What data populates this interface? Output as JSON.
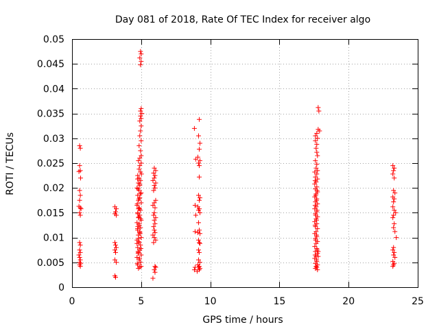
{
  "chart_data": {
    "type": "scatter",
    "title": "Day 081 of 2018, Rate Of TEC Index for receiver algo",
    "xlabel": "GPS time / hours",
    "ylabel": "ROTI / TECUs",
    "xlim": [
      0,
      25
    ],
    "ylim": [
      0,
      0.05
    ],
    "xticks": [
      0,
      5,
      10,
      15,
      20,
      25
    ],
    "xtick_labels": [
      "0",
      "5",
      "10",
      "15",
      "20",
      "25"
    ],
    "yticks": [
      0,
      0.005,
      0.01,
      0.015,
      0.02,
      0.025,
      0.03,
      0.035,
      0.04,
      0.045,
      0.05
    ],
    "ytick_labels": [
      "0",
      "0.005",
      "0.01",
      "0.015",
      "0.02",
      "0.025",
      "0.03",
      "0.035",
      "0.04",
      "0.045",
      "0.05"
    ],
    "grid": true,
    "marker": "+",
    "color": "#ff0000",
    "series": [
      {
        "name": "ROTI",
        "points": [
          [
            0.55,
            0.0285
          ],
          [
            0.6,
            0.028
          ],
          [
            0.55,
            0.0245
          ],
          [
            0.6,
            0.0235
          ],
          [
            0.5,
            0.0233
          ],
          [
            0.62,
            0.022
          ],
          [
            0.55,
            0.0195
          ],
          [
            0.6,
            0.0185
          ],
          [
            0.55,
            0.0175
          ],
          [
            0.5,
            0.0163
          ],
          [
            0.6,
            0.016
          ],
          [
            0.65,
            0.0158
          ],
          [
            0.55,
            0.015
          ],
          [
            0.6,
            0.0145
          ],
          [
            0.55,
            0.009
          ],
          [
            0.6,
            0.0085
          ],
          [
            0.55,
            0.0075
          ],
          [
            0.6,
            0.007
          ],
          [
            0.5,
            0.0065
          ],
          [
            0.55,
            0.006
          ],
          [
            0.6,
            0.0055
          ],
          [
            0.55,
            0.005
          ],
          [
            0.62,
            0.0048
          ],
          [
            0.55,
            0.0045
          ],
          [
            0.6,
            0.0042
          ],
          [
            3.1,
            0.0162
          ],
          [
            3.2,
            0.0158
          ],
          [
            3.15,
            0.0152
          ],
          [
            3.1,
            0.0148
          ],
          [
            3.2,
            0.0145
          ],
          [
            3.1,
            0.009
          ],
          [
            3.15,
            0.0085
          ],
          [
            3.2,
            0.008
          ],
          [
            3.1,
            0.0075
          ],
          [
            3.15,
            0.007
          ],
          [
            3.1,
            0.0055
          ],
          [
            3.2,
            0.005
          ],
          [
            3.1,
            0.0023
          ],
          [
            3.15,
            0.002
          ],
          [
            4.95,
            0.0475
          ],
          [
            5.0,
            0.047
          ],
          [
            4.9,
            0.0462
          ],
          [
            5.0,
            0.0455
          ],
          [
            4.95,
            0.0448
          ],
          [
            5.0,
            0.036
          ],
          [
            4.95,
            0.0355
          ],
          [
            5.05,
            0.035
          ],
          [
            4.95,
            0.0345
          ],
          [
            5.0,
            0.034
          ],
          [
            4.9,
            0.0335
          ],
          [
            5.0,
            0.0325
          ],
          [
            4.95,
            0.0315
          ],
          [
            4.9,
            0.0305
          ],
          [
            5.0,
            0.0295
          ],
          [
            4.85,
            0.0285
          ],
          [
            4.95,
            0.0275
          ],
          [
            5.0,
            0.0265
          ],
          [
            4.9,
            0.026
          ],
          [
            4.8,
            0.0255
          ],
          [
            5.0,
            0.025
          ],
          [
            4.9,
            0.0245
          ],
          [
            4.85,
            0.0238
          ],
          [
            4.95,
            0.0232
          ],
          [
            4.75,
            0.0225
          ],
          [
            4.85,
            0.022
          ],
          [
            4.95,
            0.0215
          ],
          [
            4.8,
            0.021
          ],
          [
            4.9,
            0.0205
          ],
          [
            4.7,
            0.02
          ],
          [
            4.85,
            0.0195
          ],
          [
            5.0,
            0.019
          ],
          [
            4.75,
            0.0185
          ],
          [
            4.9,
            0.018
          ],
          [
            4.8,
            0.0175
          ],
          [
            5.0,
            0.017
          ],
          [
            4.7,
            0.0165
          ],
          [
            4.85,
            0.016
          ],
          [
            4.95,
            0.0155
          ],
          [
            4.75,
            0.015
          ],
          [
            4.9,
            0.0145
          ],
          [
            4.8,
            0.014
          ],
          [
            5.0,
            0.0135
          ],
          [
            4.7,
            0.013
          ],
          [
            4.85,
            0.0125
          ],
          [
            4.95,
            0.012
          ],
          [
            4.75,
            0.0115
          ],
          [
            4.9,
            0.011
          ],
          [
            4.8,
            0.0105
          ],
          [
            5.0,
            0.01
          ],
          [
            4.7,
            0.0095
          ],
          [
            4.85,
            0.009
          ],
          [
            4.95,
            0.0085
          ],
          [
            4.75,
            0.008
          ],
          [
            4.9,
            0.0075
          ],
          [
            4.8,
            0.007
          ],
          [
            5.0,
            0.0065
          ],
          [
            4.7,
            0.006
          ],
          [
            4.85,
            0.0055
          ],
          [
            4.95,
            0.005
          ],
          [
            4.75,
            0.0045
          ],
          [
            4.9,
            0.004
          ],
          [
            4.8,
            0.0038
          ],
          [
            5.0,
            0.0042
          ],
          [
            4.72,
            0.0048
          ],
          [
            4.88,
            0.0058
          ],
          [
            4.78,
            0.0068
          ],
          [
            4.98,
            0.0078
          ],
          [
            4.7,
            0.0088
          ],
          [
            4.82,
            0.0098
          ],
          [
            4.92,
            0.0108
          ],
          [
            4.74,
            0.0118
          ],
          [
            4.86,
            0.0128
          ],
          [
            4.96,
            0.0138
          ],
          [
            4.76,
            0.0148
          ],
          [
            4.88,
            0.0158
          ],
          [
            4.72,
            0.0168
          ],
          [
            4.84,
            0.0178
          ],
          [
            4.94,
            0.0188
          ],
          [
            4.78,
            0.0198
          ],
          [
            4.9,
            0.0208
          ],
          [
            4.74,
            0.0218
          ],
          [
            5.02,
            0.0228
          ],
          [
            4.8,
            0.0158
          ],
          [
            4.84,
            0.0142
          ],
          [
            4.76,
            0.0122
          ],
          [
            4.9,
            0.0112
          ],
          [
            4.82,
            0.0092
          ],
          [
            4.78,
            0.0072
          ],
          [
            5.95,
            0.024
          ],
          [
            6.05,
            0.0235
          ],
          [
            5.9,
            0.023
          ],
          [
            6.0,
            0.0225
          ],
          [
            5.95,
            0.022
          ],
          [
            5.85,
            0.0215
          ],
          [
            6.05,
            0.021
          ],
          [
            5.95,
            0.0205
          ],
          [
            6.0,
            0.02
          ],
          [
            5.9,
            0.0195
          ],
          [
            6.05,
            0.0175
          ],
          [
            5.95,
            0.017
          ],
          [
            5.85,
            0.0165
          ],
          [
            6.0,
            0.016
          ],
          [
            5.95,
            0.015
          ],
          [
            5.9,
            0.0145
          ],
          [
            6.05,
            0.014
          ],
          [
            5.95,
            0.0135
          ],
          [
            6.0,
            0.0128
          ],
          [
            5.9,
            0.0122
          ],
          [
            5.95,
            0.0115
          ],
          [
            6.0,
            0.011
          ],
          [
            5.85,
            0.0105
          ],
          [
            5.95,
            0.01
          ],
          [
            6.05,
            0.0095
          ],
          [
            5.9,
            0.009
          ],
          [
            6.0,
            0.0042
          ],
          [
            6.05,
            0.004
          ],
          [
            5.95,
            0.0035
          ],
          [
            6.0,
            0.003
          ],
          [
            5.85,
            0.0018
          ],
          [
            8.85,
            0.032
          ],
          [
            9.2,
            0.0338
          ],
          [
            9.15,
            0.0305
          ],
          [
            9.25,
            0.029
          ],
          [
            9.2,
            0.0278
          ],
          [
            8.95,
            0.0258
          ],
          [
            9.1,
            0.0262
          ],
          [
            9.25,
            0.0255
          ],
          [
            9.15,
            0.025
          ],
          [
            9.2,
            0.0245
          ],
          [
            9.2,
            0.0222
          ],
          [
            9.15,
            0.0185
          ],
          [
            9.25,
            0.018
          ],
          [
            9.2,
            0.0175
          ],
          [
            8.9,
            0.0165
          ],
          [
            9.1,
            0.0162
          ],
          [
            9.2,
            0.0158
          ],
          [
            9.15,
            0.0155
          ],
          [
            9.25,
            0.015
          ],
          [
            8.95,
            0.0145
          ],
          [
            9.15,
            0.013
          ],
          [
            9.2,
            0.0115
          ],
          [
            9.1,
            0.011
          ],
          [
            9.25,
            0.0108
          ],
          [
            8.9,
            0.0112
          ],
          [
            9.15,
            0.0095
          ],
          [
            9.2,
            0.009
          ],
          [
            9.25,
            0.0088
          ],
          [
            9.15,
            0.0075
          ],
          [
            9.2,
            0.007
          ],
          [
            9.15,
            0.0055
          ],
          [
            9.25,
            0.005
          ],
          [
            9.1,
            0.0045
          ],
          [
            9.2,
            0.0042
          ],
          [
            9.15,
            0.004
          ],
          [
            8.9,
            0.004
          ],
          [
            9.25,
            0.0038
          ],
          [
            9.2,
            0.0035
          ],
          [
            9.05,
            0.0032
          ],
          [
            8.85,
            0.0035
          ],
          [
            17.8,
            0.0362
          ],
          [
            17.85,
            0.0355
          ],
          [
            17.8,
            0.0318
          ],
          [
            17.9,
            0.0315
          ],
          [
            17.7,
            0.031
          ],
          [
            17.6,
            0.0305
          ],
          [
            17.75,
            0.03
          ],
          [
            17.6,
            0.0295
          ],
          [
            17.7,
            0.0288
          ],
          [
            17.65,
            0.028
          ],
          [
            17.7,
            0.0272
          ],
          [
            17.75,
            0.0265
          ],
          [
            17.6,
            0.0255
          ],
          [
            17.7,
            0.0248
          ],
          [
            17.65,
            0.024
          ],
          [
            17.75,
            0.0235
          ],
          [
            17.55,
            0.0232
          ],
          [
            17.7,
            0.0228
          ],
          [
            17.6,
            0.0222
          ],
          [
            17.75,
            0.0218
          ],
          [
            17.65,
            0.0212
          ],
          [
            17.55,
            0.0208
          ],
          [
            17.7,
            0.0202
          ],
          [
            17.6,
            0.0198
          ],
          [
            17.75,
            0.0192
          ],
          [
            17.65,
            0.0188
          ],
          [
            17.55,
            0.0182
          ],
          [
            17.7,
            0.0178
          ],
          [
            17.6,
            0.0172
          ],
          [
            17.75,
            0.0168
          ],
          [
            17.65,
            0.0162
          ],
          [
            17.55,
            0.0158
          ],
          [
            17.7,
            0.0152
          ],
          [
            17.6,
            0.0148
          ],
          [
            17.75,
            0.0142
          ],
          [
            17.65,
            0.0138
          ],
          [
            17.55,
            0.0132
          ],
          [
            17.7,
            0.0128
          ],
          [
            17.6,
            0.0122
          ],
          [
            17.75,
            0.0118
          ],
          [
            17.65,
            0.0112
          ],
          [
            17.55,
            0.0108
          ],
          [
            17.7,
            0.0102
          ],
          [
            17.6,
            0.0098
          ],
          [
            17.75,
            0.0092
          ],
          [
            17.65,
            0.0088
          ],
          [
            17.55,
            0.0082
          ],
          [
            17.7,
            0.0078
          ],
          [
            17.6,
            0.0072
          ],
          [
            17.75,
            0.0068
          ],
          [
            17.65,
            0.0062
          ],
          [
            17.55,
            0.0058
          ],
          [
            17.7,
            0.0052
          ],
          [
            17.6,
            0.0048
          ],
          [
            17.75,
            0.0045
          ],
          [
            17.65,
            0.0042
          ],
          [
            17.7,
            0.004
          ],
          [
            17.6,
            0.0038
          ],
          [
            17.75,
            0.0035
          ],
          [
            17.58,
            0.0165
          ],
          [
            17.68,
            0.0175
          ],
          [
            17.62,
            0.0145
          ],
          [
            17.72,
            0.0155
          ],
          [
            17.58,
            0.0125
          ],
          [
            17.68,
            0.0135
          ],
          [
            17.62,
            0.0185
          ],
          [
            17.72,
            0.0195
          ],
          [
            17.58,
            0.0215
          ],
          [
            17.68,
            0.0105
          ],
          [
            17.62,
            0.0095
          ],
          [
            17.72,
            0.0075
          ],
          [
            17.58,
            0.0065
          ],
          [
            17.68,
            0.0055
          ],
          [
            17.8,
            0.0062
          ],
          [
            17.8,
            0.0072
          ],
          [
            23.2,
            0.0245
          ],
          [
            23.3,
            0.024
          ],
          [
            23.25,
            0.0235
          ],
          [
            23.2,
            0.0228
          ],
          [
            23.3,
            0.022
          ],
          [
            23.25,
            0.0195
          ],
          [
            23.35,
            0.019
          ],
          [
            23.2,
            0.0182
          ],
          [
            23.3,
            0.0178
          ],
          [
            23.25,
            0.0172
          ],
          [
            23.2,
            0.0162
          ],
          [
            23.3,
            0.0155
          ],
          [
            23.4,
            0.015
          ],
          [
            23.25,
            0.0145
          ],
          [
            23.2,
            0.014
          ],
          [
            23.3,
            0.0128
          ],
          [
            23.25,
            0.012
          ],
          [
            23.35,
            0.0112
          ],
          [
            23.45,
            0.01
          ],
          [
            23.25,
            0.008
          ],
          [
            23.2,
            0.0075
          ],
          [
            23.3,
            0.007
          ],
          [
            23.25,
            0.0065
          ],
          [
            23.35,
            0.006
          ],
          [
            23.2,
            0.0052
          ],
          [
            23.3,
            0.0048
          ],
          [
            23.25,
            0.0045
          ],
          [
            23.2,
            0.0042
          ]
        ]
      }
    ]
  }
}
